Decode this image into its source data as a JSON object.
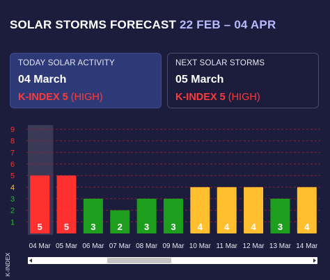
{
  "header": {
    "title": "SOLAR STORMS FORECAST",
    "range": "22 FEB – 04 APR"
  },
  "today": {
    "label": "TODAY SOLAR ACTIVITY",
    "date": "04 March",
    "k_label": "K-INDEX 5",
    "level": "(HIGH)"
  },
  "next": {
    "label": "NEXT SOLAR STORMS",
    "date": "05 March",
    "k_label": "K-INDEX 5",
    "level": "(HIGH)"
  },
  "colors": {
    "high": "#ff3030",
    "medium": "#ffbf2e",
    "low": "#1d9e1d",
    "grid": "#7a2a3c",
    "highlight": "#3a3a56"
  },
  "chart_data": {
    "type": "bar",
    "ylabel": "K-INDEX",
    "ylim": [
      0,
      9
    ],
    "yticks": [
      1,
      2,
      3,
      4,
      5,
      6,
      7,
      8,
      9
    ],
    "ytick_colors": [
      "#22c022",
      "#22c022",
      "#22c022",
      "#ffbf2e",
      "#ff3030",
      "#ff3030",
      "#ff3030",
      "#ff3030",
      "#ff3030"
    ],
    "grid": "dashed horizontal",
    "categories": [
      "04 Mar",
      "05 Mar",
      "06 Mar",
      "07 Mar",
      "08 Mar",
      "09 Mar",
      "10 Mar",
      "11 Mar",
      "12 Mar",
      "13 Mar",
      "14 Mar"
    ],
    "values": [
      5,
      5,
      3,
      2,
      3,
      3,
      4,
      4,
      4,
      3,
      4
    ],
    "highlighted_category": "04 Mar"
  }
}
